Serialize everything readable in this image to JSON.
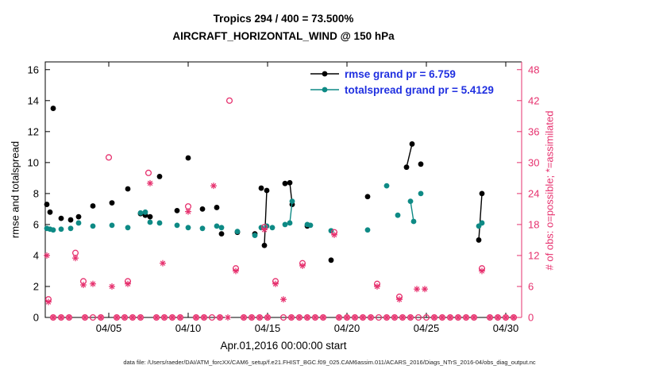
{
  "caption": "data file: /Users/raeder/DAI/ATM_forcXX/CAM6_setup/f.e21.FHIST_BGC.f09_025.CAM6assim.011/ACARS_2016/Diags_NTrS_2016-04/obs_diag_output.nc",
  "chart_data": {
    "type": "scatter",
    "title": "Tropics 294 / 400 = 73.500%",
    "subtitle": "AIRCRAFT_HORIZONTAL_WIND @ 150 hPa",
    "xlabel": "Apr.01,2016 00:00:00 start",
    "ylabel_left": "rmse and totalspread",
    "ylabel_right": "# of obs: o=possible; *=assimilated",
    "grid": false,
    "legend_position": "top-center-inside",
    "colors": {
      "rmse": "#000000",
      "totalspread": "#0e8a85",
      "obs": "#e6316e",
      "legend_text": "#2030e0"
    },
    "x_axis": {
      "domain": [
        0,
        30
      ],
      "tick_days": [
        4,
        9,
        14,
        19,
        24,
        29
      ],
      "tick_labels": [
        "04/05",
        "04/10",
        "04/15",
        "04/20",
        "04/25",
        "04/30"
      ]
    },
    "y_left": {
      "min": 0,
      "max": 16.5,
      "ticks": [
        0,
        2,
        4,
        6,
        8,
        10,
        12,
        14,
        16
      ]
    },
    "y_right": {
      "min": 0,
      "max": 49.5,
      "ticks": [
        0,
        6,
        12,
        18,
        24,
        30,
        36,
        42,
        48
      ]
    },
    "series": [
      {
        "name": "rmse",
        "legend_label": "rmse grand pr = 6.759",
        "color": "#000000",
        "marker": "filled-circle",
        "axis": "left",
        "runs": [
          [
            [
              0.1,
              7.3
            ]
          ],
          [
            [
              0.3,
              6.8
            ]
          ],
          [
            [
              0.5,
              13.5
            ]
          ],
          [
            [
              1.0,
              6.4
            ]
          ],
          [
            [
              1.6,
              6.3
            ]
          ],
          [
            [
              2.1,
              6.5
            ]
          ],
          [
            [
              3.0,
              7.2
            ]
          ],
          [
            [
              4.2,
              7.4
            ]
          ],
          [
            [
              5.2,
              8.3
            ]
          ],
          [
            [
              6.0,
              6.7
            ]
          ],
          [
            [
              6.3,
              6.6
            ]
          ],
          [
            [
              6.6,
              6.5
            ]
          ],
          [
            [
              7.2,
              9.1
            ]
          ],
          [
            [
              8.3,
              6.9
            ]
          ],
          [
            [
              9.0,
              10.3
            ]
          ],
          [
            [
              9.9,
              7.0
            ]
          ],
          [
            [
              10.8,
              7.1
            ]
          ],
          [
            [
              11.1,
              5.4
            ]
          ],
          [
            [
              12.1,
              5.5
            ]
          ],
          [
            [
              13.2,
              5.4
            ]
          ],
          [
            [
              13.6,
              8.35
            ]
          ],
          [
            [
              13.8,
              4.65
            ],
            [
              13.95,
              8.2
            ]
          ],
          [
            [
              15.1,
              8.65
            ],
            [
              15.4,
              8.7
            ],
            [
              15.55,
              7.3
            ]
          ],
          [
            [
              16.5,
              5.9
            ]
          ],
          [
            [
              18.0,
              3.7
            ]
          ],
          [
            [
              20.3,
              7.8
            ]
          ],
          [
            [
              22.75,
              9.7
            ],
            [
              23.1,
              11.2
            ]
          ],
          [
            [
              23.65,
              9.9
            ]
          ],
          [
            [
              27.3,
              5.0
            ],
            [
              27.5,
              8.0
            ]
          ]
        ]
      },
      {
        "name": "totalspread",
        "legend_label": "totalspread grand pr = 5.4129",
        "color": "#0e8a85",
        "marker": "filled-circle",
        "axis": "left",
        "runs": [
          [
            [
              0.1,
              5.75
            ]
          ],
          [
            [
              0.3,
              5.7
            ]
          ],
          [
            [
              0.5,
              5.65
            ]
          ],
          [
            [
              1.0,
              5.7
            ]
          ],
          [
            [
              1.6,
              5.75
            ]
          ],
          [
            [
              2.1,
              6.1
            ]
          ],
          [
            [
              3.0,
              5.9
            ]
          ],
          [
            [
              4.2,
              5.95
            ]
          ],
          [
            [
              5.2,
              5.8
            ]
          ],
          [
            [
              6.0,
              6.75
            ]
          ],
          [
            [
              6.3,
              6.8
            ]
          ],
          [
            [
              6.6,
              6.15
            ]
          ],
          [
            [
              7.2,
              6.1
            ]
          ],
          [
            [
              8.3,
              5.95
            ]
          ],
          [
            [
              9.0,
              5.8
            ]
          ],
          [
            [
              9.9,
              5.75
            ]
          ],
          [
            [
              10.8,
              5.9
            ]
          ],
          [
            [
              11.1,
              5.8
            ]
          ],
          [
            [
              12.1,
              5.55
            ]
          ],
          [
            [
              13.2,
              5.3
            ]
          ],
          [
            [
              13.6,
              5.8
            ]
          ],
          [
            [
              13.95,
              5.9
            ]
          ],
          [
            [
              14.3,
              5.8
            ]
          ],
          [
            [
              15.1,
              6.0
            ]
          ],
          [
            [
              15.4,
              6.1
            ],
            [
              15.55,
              7.5
            ]
          ],
          [
            [
              16.5,
              6.0
            ]
          ],
          [
            [
              16.7,
              5.95
            ]
          ],
          [
            [
              18.0,
              5.6
            ]
          ],
          [
            [
              20.3,
              5.65
            ]
          ],
          [
            [
              21.5,
              8.5
            ]
          ],
          [
            [
              22.2,
              6.6
            ]
          ],
          [
            [
              23.0,
              7.5
            ],
            [
              23.2,
              6.2
            ]
          ],
          [
            [
              23.65,
              8.0
            ]
          ],
          [
            [
              27.3,
              5.9
            ],
            [
              27.5,
              6.1
            ]
          ]
        ]
      },
      {
        "name": "possible",
        "legend_label": null,
        "color": "#e6316e",
        "marker": "open-circle",
        "axis": "right",
        "points": [
          [
            0.2,
            3.5
          ],
          [
            1.9,
            12.5
          ],
          [
            2.4,
            7.0
          ],
          [
            4.0,
            31
          ],
          [
            5.2,
            7.0
          ],
          [
            6.5,
            28
          ],
          [
            9.0,
            21.5
          ],
          [
            11.6,
            42
          ],
          [
            12.0,
            9.5
          ],
          [
            13.8,
            17.5
          ],
          [
            14.5,
            7.0
          ],
          [
            16.2,
            10.5
          ],
          [
            18.2,
            16.5
          ],
          [
            20.9,
            6.5
          ],
          [
            22.3,
            4.0
          ],
          [
            27.5,
            9.5
          ]
        ],
        "zero_days": [
          0.5,
          1.0,
          1.5,
          2.5,
          3.0,
          3.5,
          4.5,
          5.0,
          5.5,
          6.0,
          7.0,
          7.5,
          8.0,
          8.5,
          9.5,
          10.0,
          10.5,
          11.0,
          12.5,
          13.0,
          13.5,
          14.0,
          15.0,
          15.5,
          16.0,
          16.5,
          17.0,
          17.5,
          18.5,
          19.0,
          19.5,
          20.0,
          20.5,
          21.0,
          21.5,
          22.0,
          22.5,
          23.0,
          23.5,
          24.0,
          24.5,
          25.0,
          25.5,
          26.0,
          26.5,
          27.0,
          28.0,
          28.5,
          29.0,
          29.5
        ]
      },
      {
        "name": "assimilated",
        "legend_label": null,
        "color": "#e6316e",
        "marker": "asterisk",
        "axis": "right",
        "points": [
          [
            0.1,
            12
          ],
          [
            0.2,
            3
          ],
          [
            1.9,
            11.5
          ],
          [
            2.4,
            6.3
          ],
          [
            3.0,
            6.5
          ],
          [
            4.2,
            6.0
          ],
          [
            5.2,
            6.5
          ],
          [
            6.6,
            26
          ],
          [
            7.4,
            10.5
          ],
          [
            9.0,
            20.5
          ],
          [
            10.6,
            25.5
          ],
          [
            12.0,
            9.0
          ],
          [
            13.8,
            17.0
          ],
          [
            14.5,
            6.5
          ],
          [
            15.0,
            3.5
          ],
          [
            16.2,
            10.0
          ],
          [
            18.2,
            16.0
          ],
          [
            20.9,
            6.0
          ],
          [
            22.3,
            3.5
          ],
          [
            23.4,
            5.5
          ],
          [
            23.9,
            5.5
          ],
          [
            27.5,
            9.0
          ]
        ],
        "zero_days": [
          0.5,
          1.0,
          1.5,
          2.5,
          3.5,
          4.5,
          5.0,
          5.5,
          6.0,
          7.0,
          7.5,
          8.0,
          8.5,
          9.5,
          10.0,
          11.0,
          11.5,
          12.5,
          13.0,
          13.5,
          14.0,
          15.5,
          16.0,
          16.5,
          17.0,
          17.5,
          18.5,
          19.0,
          19.5,
          20.0,
          20.5,
          21.5,
          22.0,
          22.5,
          23.0,
          24.5,
          25.0,
          25.5,
          26.0,
          26.5,
          27.0,
          28.0,
          28.5,
          29.0,
          29.5
        ]
      }
    ]
  }
}
